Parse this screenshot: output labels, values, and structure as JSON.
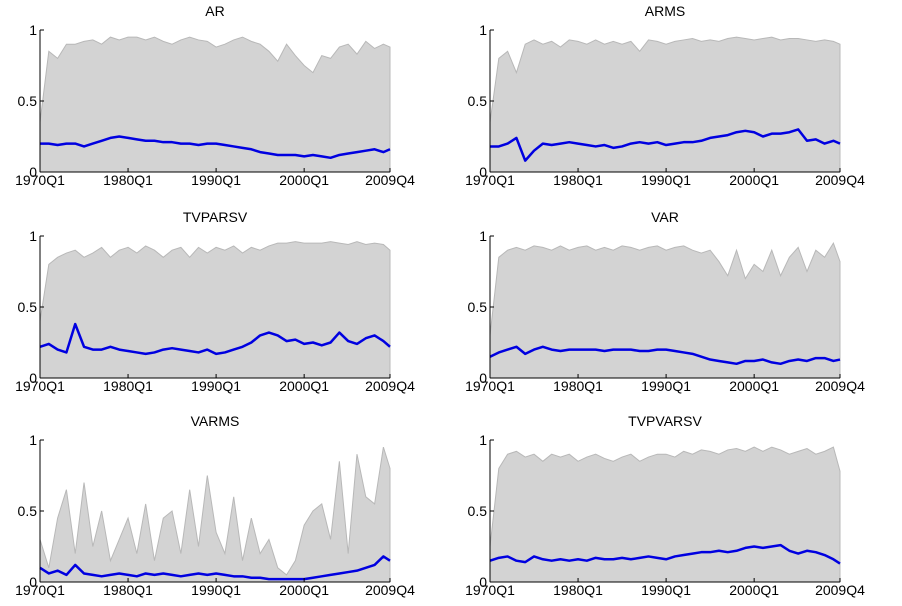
{
  "chart_data": [
    {
      "type": "line",
      "title": "AR",
      "x": [
        "1970Q1",
        "1971Q1",
        "1972Q1",
        "1973Q1",
        "1974Q1",
        "1975Q1",
        "1976Q1",
        "1977Q1",
        "1978Q1",
        "1979Q1",
        "1980Q1",
        "1981Q1",
        "1982Q1",
        "1983Q1",
        "1984Q1",
        "1985Q1",
        "1986Q1",
        "1987Q1",
        "1988Q1",
        "1989Q1",
        "1990Q1",
        "1991Q1",
        "1992Q1",
        "1993Q1",
        "1994Q1",
        "1995Q1",
        "1996Q1",
        "1997Q1",
        "1998Q1",
        "1999Q1",
        "2000Q1",
        "2001Q1",
        "2002Q1",
        "2003Q1",
        "2004Q1",
        "2005Q1",
        "2006Q1",
        "2007Q1",
        "2008Q1",
        "2009Q1",
        "2009Q4"
      ],
      "band": {
        "color": "#d3d3d3",
        "edge": "#b8b8b8",
        "values": [
          0.35,
          0.85,
          0.8,
          0.9,
          0.9,
          0.92,
          0.93,
          0.9,
          0.95,
          0.93,
          0.95,
          0.95,
          0.93,
          0.95,
          0.92,
          0.9,
          0.93,
          0.95,
          0.93,
          0.92,
          0.88,
          0.9,
          0.93,
          0.95,
          0.92,
          0.9,
          0.85,
          0.78,
          0.9,
          0.82,
          0.75,
          0.7,
          0.82,
          0.8,
          0.88,
          0.9,
          0.83,
          0.92,
          0.87,
          0.9,
          0.88
        ]
      },
      "series": [
        {
          "color": "#0000e0",
          "values": [
            0.2,
            0.2,
            0.19,
            0.2,
            0.2,
            0.18,
            0.2,
            0.22,
            0.24,
            0.25,
            0.24,
            0.23,
            0.22,
            0.22,
            0.21,
            0.21,
            0.2,
            0.2,
            0.19,
            0.2,
            0.2,
            0.19,
            0.18,
            0.17,
            0.16,
            0.14,
            0.13,
            0.12,
            0.12,
            0.12,
            0.11,
            0.12,
            0.11,
            0.1,
            0.12,
            0.13,
            0.14,
            0.15,
            0.16,
            0.14,
            0.16
          ]
        }
      ],
      "xlim": [
        "1970Q1",
        "2009Q4"
      ],
      "xticks": [
        "1970Q1",
        "1980Q1",
        "1990Q1",
        "2000Q1",
        "2009Q4"
      ],
      "ylim": [
        0,
        1
      ],
      "yticks": [
        0,
        0.5,
        1
      ]
    },
    {
      "type": "line",
      "title": "ARMS",
      "x": [
        "1970Q1",
        "1971Q1",
        "1972Q1",
        "1973Q1",
        "1974Q1",
        "1975Q1",
        "1976Q1",
        "1977Q1",
        "1978Q1",
        "1979Q1",
        "1980Q1",
        "1981Q1",
        "1982Q1",
        "1983Q1",
        "1984Q1",
        "1985Q1",
        "1986Q1",
        "1987Q1",
        "1988Q1",
        "1989Q1",
        "1990Q1",
        "1991Q1",
        "1992Q1",
        "1993Q1",
        "1994Q1",
        "1995Q1",
        "1996Q1",
        "1997Q1",
        "1998Q1",
        "1999Q1",
        "2000Q1",
        "2001Q1",
        "2002Q1",
        "2003Q1",
        "2004Q1",
        "2005Q1",
        "2006Q1",
        "2007Q1",
        "2008Q1",
        "2009Q1",
        "2009Q4"
      ],
      "band": {
        "color": "#d3d3d3",
        "edge": "#b8b8b8",
        "values": [
          0.35,
          0.8,
          0.85,
          0.7,
          0.9,
          0.93,
          0.9,
          0.92,
          0.88,
          0.93,
          0.92,
          0.9,
          0.93,
          0.9,
          0.92,
          0.9,
          0.92,
          0.85,
          0.93,
          0.92,
          0.9,
          0.92,
          0.93,
          0.94,
          0.92,
          0.93,
          0.92,
          0.94,
          0.95,
          0.94,
          0.93,
          0.94,
          0.95,
          0.93,
          0.94,
          0.94,
          0.93,
          0.92,
          0.93,
          0.92,
          0.9
        ]
      },
      "series": [
        {
          "color": "#0000e0",
          "values": [
            0.18,
            0.18,
            0.2,
            0.24,
            0.08,
            0.15,
            0.2,
            0.19,
            0.2,
            0.21,
            0.2,
            0.19,
            0.18,
            0.19,
            0.17,
            0.18,
            0.2,
            0.21,
            0.2,
            0.21,
            0.19,
            0.2,
            0.21,
            0.21,
            0.22,
            0.24,
            0.25,
            0.26,
            0.28,
            0.29,
            0.28,
            0.25,
            0.27,
            0.27,
            0.28,
            0.3,
            0.22,
            0.23,
            0.2,
            0.22,
            0.2
          ]
        }
      ],
      "xlim": [
        "1970Q1",
        "2009Q4"
      ],
      "xticks": [
        "1970Q1",
        "1980Q1",
        "1990Q1",
        "2000Q1",
        "2009Q4"
      ],
      "ylim": [
        0,
        1
      ],
      "yticks": [
        0,
        0.5,
        1
      ]
    },
    {
      "type": "line",
      "title": "TVPARSV",
      "x": [
        "1970Q1",
        "1971Q1",
        "1972Q1",
        "1973Q1",
        "1974Q1",
        "1975Q1",
        "1976Q1",
        "1977Q1",
        "1978Q1",
        "1979Q1",
        "1980Q1",
        "1981Q1",
        "1982Q1",
        "1983Q1",
        "1984Q1",
        "1985Q1",
        "1986Q1",
        "1987Q1",
        "1988Q1",
        "1989Q1",
        "1990Q1",
        "1991Q1",
        "1992Q1",
        "1993Q1",
        "1994Q1",
        "1995Q1",
        "1996Q1",
        "1997Q1",
        "1998Q1",
        "1999Q1",
        "2000Q1",
        "2001Q1",
        "2002Q1",
        "2003Q1",
        "2004Q1",
        "2005Q1",
        "2006Q1",
        "2007Q1",
        "2008Q1",
        "2009Q1",
        "2009Q4"
      ],
      "band": {
        "color": "#d3d3d3",
        "edge": "#b8b8b8",
        "values": [
          0.4,
          0.8,
          0.85,
          0.88,
          0.9,
          0.85,
          0.88,
          0.92,
          0.85,
          0.9,
          0.92,
          0.88,
          0.93,
          0.9,
          0.85,
          0.9,
          0.92,
          0.85,
          0.92,
          0.88,
          0.92,
          0.9,
          0.93,
          0.88,
          0.92,
          0.9,
          0.93,
          0.95,
          0.95,
          0.96,
          0.95,
          0.95,
          0.95,
          0.96,
          0.95,
          0.94,
          0.96,
          0.94,
          0.95,
          0.94,
          0.9
        ]
      },
      "series": [
        {
          "color": "#0000e0",
          "values": [
            0.22,
            0.24,
            0.2,
            0.18,
            0.38,
            0.22,
            0.2,
            0.2,
            0.22,
            0.2,
            0.19,
            0.18,
            0.17,
            0.18,
            0.2,
            0.21,
            0.2,
            0.19,
            0.18,
            0.2,
            0.17,
            0.18,
            0.2,
            0.22,
            0.25,
            0.3,
            0.32,
            0.3,
            0.26,
            0.27,
            0.24,
            0.25,
            0.23,
            0.25,
            0.32,
            0.26,
            0.24,
            0.28,
            0.3,
            0.26,
            0.22
          ]
        }
      ],
      "xlim": [
        "1970Q1",
        "2009Q4"
      ],
      "xticks": [
        "1970Q1",
        "1980Q1",
        "1990Q1",
        "2000Q1",
        "2009Q4"
      ],
      "ylim": [
        0,
        1
      ],
      "yticks": [
        0,
        0.5,
        1
      ]
    },
    {
      "type": "line",
      "title": "VAR",
      "x": [
        "1970Q1",
        "1971Q1",
        "1972Q1",
        "1973Q1",
        "1974Q1",
        "1975Q1",
        "1976Q1",
        "1977Q1",
        "1978Q1",
        "1979Q1",
        "1980Q1",
        "1981Q1",
        "1982Q1",
        "1983Q1",
        "1984Q1",
        "1985Q1",
        "1986Q1",
        "1987Q1",
        "1988Q1",
        "1989Q1",
        "1990Q1",
        "1991Q1",
        "1992Q1",
        "1993Q1",
        "1994Q1",
        "1995Q1",
        "1996Q1",
        "1997Q1",
        "1998Q1",
        "1999Q1",
        "2000Q1",
        "2001Q1",
        "2002Q1",
        "2003Q1",
        "2004Q1",
        "2005Q1",
        "2006Q1",
        "2007Q1",
        "2008Q1",
        "2009Q1",
        "2009Q4"
      ],
      "band": {
        "color": "#d3d3d3",
        "edge": "#b8b8b8",
        "values": [
          0.3,
          0.85,
          0.9,
          0.92,
          0.9,
          0.93,
          0.92,
          0.9,
          0.93,
          0.9,
          0.92,
          0.93,
          0.9,
          0.92,
          0.9,
          0.93,
          0.92,
          0.9,
          0.92,
          0.93,
          0.9,
          0.92,
          0.93,
          0.9,
          0.88,
          0.9,
          0.82,
          0.72,
          0.9,
          0.7,
          0.8,
          0.75,
          0.9,
          0.72,
          0.85,
          0.92,
          0.75,
          0.9,
          0.85,
          0.95,
          0.82
        ]
      },
      "series": [
        {
          "color": "#0000e0",
          "values": [
            0.15,
            0.18,
            0.2,
            0.22,
            0.17,
            0.2,
            0.22,
            0.2,
            0.19,
            0.2,
            0.2,
            0.2,
            0.2,
            0.19,
            0.2,
            0.2,
            0.2,
            0.19,
            0.19,
            0.2,
            0.2,
            0.19,
            0.18,
            0.17,
            0.15,
            0.13,
            0.12,
            0.11,
            0.1,
            0.12,
            0.12,
            0.13,
            0.11,
            0.1,
            0.12,
            0.13,
            0.12,
            0.14,
            0.14,
            0.12,
            0.13
          ]
        }
      ],
      "xlim": [
        "1970Q1",
        "2009Q4"
      ],
      "xticks": [
        "1970Q1",
        "1980Q1",
        "1990Q1",
        "2000Q1",
        "2009Q4"
      ],
      "ylim": [
        0,
        1
      ],
      "yticks": [
        0,
        0.5,
        1
      ]
    },
    {
      "type": "line",
      "title": "VARMS",
      "x": [
        "1970Q1",
        "1971Q1",
        "1972Q1",
        "1973Q1",
        "1974Q1",
        "1975Q1",
        "1976Q1",
        "1977Q1",
        "1978Q1",
        "1979Q1",
        "1980Q1",
        "1981Q1",
        "1982Q1",
        "1983Q1",
        "1984Q1",
        "1985Q1",
        "1986Q1",
        "1987Q1",
        "1988Q1",
        "1989Q1",
        "1990Q1",
        "1991Q1",
        "1992Q1",
        "1993Q1",
        "1994Q1",
        "1995Q1",
        "1996Q1",
        "1997Q1",
        "1998Q1",
        "1999Q1",
        "2000Q1",
        "2001Q1",
        "2002Q1",
        "2003Q1",
        "2004Q1",
        "2005Q1",
        "2006Q1",
        "2007Q1",
        "2008Q1",
        "2009Q1",
        "2009Q4"
      ],
      "band": {
        "color": "#d3d3d3",
        "edge": "#b8b8b8",
        "values": [
          0.3,
          0.1,
          0.45,
          0.65,
          0.2,
          0.7,
          0.25,
          0.5,
          0.15,
          0.3,
          0.45,
          0.2,
          0.55,
          0.15,
          0.45,
          0.5,
          0.2,
          0.65,
          0.25,
          0.75,
          0.35,
          0.2,
          0.6,
          0.15,
          0.45,
          0.2,
          0.3,
          0.1,
          0.05,
          0.15,
          0.4,
          0.5,
          0.55,
          0.3,
          0.85,
          0.2,
          0.9,
          0.6,
          0.55,
          0.95,
          0.8
        ]
      },
      "series": [
        {
          "color": "#0000e0",
          "values": [
            0.1,
            0.06,
            0.08,
            0.05,
            0.12,
            0.06,
            0.05,
            0.04,
            0.05,
            0.06,
            0.05,
            0.04,
            0.06,
            0.05,
            0.06,
            0.05,
            0.04,
            0.05,
            0.06,
            0.05,
            0.06,
            0.05,
            0.04,
            0.04,
            0.03,
            0.03,
            0.02,
            0.02,
            0.02,
            0.02,
            0.02,
            0.03,
            0.04,
            0.05,
            0.06,
            0.07,
            0.08,
            0.1,
            0.12,
            0.18,
            0.15
          ]
        }
      ],
      "xlim": [
        "1970Q1",
        "2009Q4"
      ],
      "xticks": [
        "1970Q1",
        "1980Q1",
        "1990Q1",
        "2000Q1",
        "2009Q4"
      ],
      "ylim": [
        0,
        1
      ],
      "yticks": [
        0,
        0.5,
        1
      ]
    },
    {
      "type": "line",
      "title": "TVPVARSV",
      "x": [
        "1970Q1",
        "1971Q1",
        "1972Q1",
        "1973Q1",
        "1974Q1",
        "1975Q1",
        "1976Q1",
        "1977Q1",
        "1978Q1",
        "1979Q1",
        "1980Q1",
        "1981Q1",
        "1982Q1",
        "1983Q1",
        "1984Q1",
        "1985Q1",
        "1986Q1",
        "1987Q1",
        "1988Q1",
        "1989Q1",
        "1990Q1",
        "1991Q1",
        "1992Q1",
        "1993Q1",
        "1994Q1",
        "1995Q1",
        "1996Q1",
        "1997Q1",
        "1998Q1",
        "1999Q1",
        "2000Q1",
        "2001Q1",
        "2002Q1",
        "2003Q1",
        "2004Q1",
        "2005Q1",
        "2006Q1",
        "2007Q1",
        "2008Q1",
        "2009Q1",
        "2009Q4"
      ],
      "band": {
        "color": "#d3d3d3",
        "edge": "#b8b8b8",
        "values": [
          0.25,
          0.8,
          0.9,
          0.92,
          0.88,
          0.9,
          0.85,
          0.9,
          0.88,
          0.9,
          0.85,
          0.88,
          0.9,
          0.87,
          0.85,
          0.88,
          0.9,
          0.85,
          0.88,
          0.9,
          0.9,
          0.88,
          0.92,
          0.9,
          0.93,
          0.92,
          0.9,
          0.93,
          0.94,
          0.92,
          0.95,
          0.92,
          0.95,
          0.93,
          0.9,
          0.92,
          0.94,
          0.9,
          0.92,
          0.95,
          0.78
        ]
      },
      "series": [
        {
          "color": "#0000e0",
          "values": [
            0.15,
            0.17,
            0.18,
            0.15,
            0.14,
            0.18,
            0.16,
            0.15,
            0.16,
            0.15,
            0.16,
            0.15,
            0.17,
            0.16,
            0.16,
            0.17,
            0.16,
            0.17,
            0.18,
            0.17,
            0.16,
            0.18,
            0.19,
            0.2,
            0.21,
            0.21,
            0.22,
            0.21,
            0.22,
            0.24,
            0.25,
            0.24,
            0.25,
            0.26,
            0.22,
            0.2,
            0.22,
            0.21,
            0.19,
            0.16,
            0.13
          ]
        }
      ],
      "xlim": [
        "1970Q1",
        "2009Q4"
      ],
      "xticks": [
        "1970Q1",
        "1980Q1",
        "1990Q1",
        "2000Q1",
        "2009Q4"
      ],
      "ylim": [
        0,
        1
      ],
      "yticks": [
        0,
        0.5,
        1
      ]
    }
  ]
}
